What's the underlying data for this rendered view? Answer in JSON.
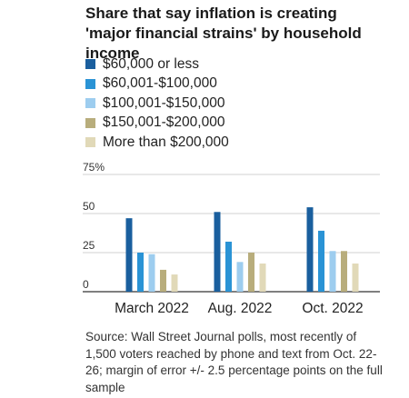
{
  "chart_data": {
    "type": "bar",
    "title": "Share that say inflation is creating 'major financial strains' by household income",
    "categories": [
      "March 2022",
      "Aug. 2022",
      "Oct. 2022"
    ],
    "series": [
      {
        "name": "$60,000 or less",
        "color": "#1a5f9e",
        "values": [
          47,
          51,
          54
        ]
      },
      {
        "name": "$60,001-$100,000",
        "color": "#2a93d5",
        "values": [
          25,
          32,
          39
        ]
      },
      {
        "name": "$100,001-$150,000",
        "color": "#9dcdef",
        "values": [
          24,
          19,
          26
        ]
      },
      {
        "name": "$150,001-$200,000",
        "color": "#b8ad7c",
        "values": [
          14,
          25,
          26
        ]
      },
      {
        "name": "More than $200,000",
        "color": "#e1d9b8",
        "values": [
          11,
          18,
          18
        ]
      }
    ],
    "yticks": [
      {
        "value": 0,
        "label": "0"
      },
      {
        "value": 25,
        "label": "25"
      },
      {
        "value": 50,
        "label": "50"
      },
      {
        "value": 75,
        "label": "75%"
      }
    ],
    "ylim": [
      0,
      75
    ],
    "grid": true,
    "legend": "top-left",
    "xlabel": "",
    "ylabel": ""
  },
  "source": "Source: Wall Street Journal polls, most recently of 1,500 voters reached by phone and text from Oct. 22-26; margin of error +/- 2.5 percentage points on the full sample"
}
